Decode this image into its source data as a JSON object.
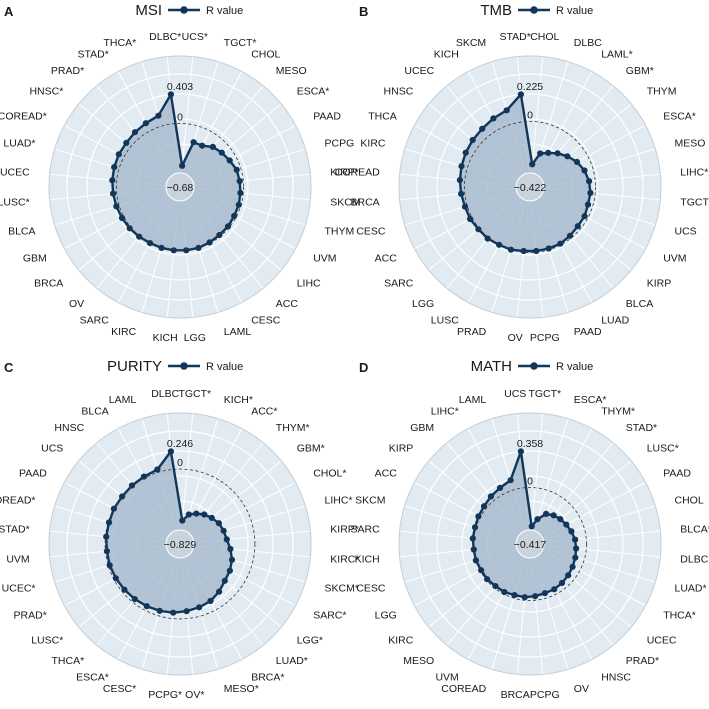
{
  "legend_label": "R value",
  "colors": {
    "series": "#12365a",
    "fill": "#9fb4c8",
    "panel_bg": "#e3ebf2",
    "grid": "#ffffff",
    "ring_lines": "#9aa0a6",
    "zero_ring": "#333333"
  },
  "chart_data": [
    {
      "panel": "A",
      "title": "MSI",
      "type": "radar",
      "rmin": -0.68,
      "rmax": 0.403,
      "labels": {
        "max": "0.403",
        "zero": "0",
        "min": "−0.68"
      },
      "categories": [
        "UCS*",
        "TGCT*",
        "CHOL",
        "MESO",
        "ESCA*",
        "PAAD",
        "PCPG",
        "KIRP*",
        "SKCM",
        "THYM",
        "UVM",
        "LIHC",
        "ACC",
        "CESC",
        "LAML",
        "LGG",
        "KICH",
        "KIRC",
        "SARC",
        "OV",
        "BRCA",
        "GBM",
        "BLCA",
        "LUSC*",
        "UCEC",
        "LUAD*",
        "COREAD*",
        "HNSC*",
        "PRAD*",
        "STAD*",
        "THCA*",
        "DLBC*"
      ],
      "values": [
        -0.58,
        -0.23,
        -0.23,
        -0.16,
        -0.13,
        -0.1,
        -0.06,
        -0.05,
        -0.04,
        -0.03,
        -0.03,
        -0.02,
        -0.02,
        -0.01,
        0.0,
        0.0,
        0.0,
        0.0,
        0.0,
        0.01,
        0.02,
        0.03,
        0.04,
        0.05,
        0.06,
        0.07,
        0.08,
        0.08,
        0.1,
        0.12,
        0.15,
        0.403
      ]
    },
    {
      "panel": "B",
      "title": "TMB",
      "type": "radar",
      "rmin": -0.422,
      "rmax": 0.225,
      "labels": {
        "max": "0.225",
        "zero": "0",
        "min": "−0.422"
      },
      "categories": [
        "CHOL",
        "DLBC",
        "LAML*",
        "GBM*",
        "THYM",
        "ESCA*",
        "MESO",
        "LIHC*",
        "TGCT",
        "UCS",
        "UVM",
        "KIRP",
        "BLCA",
        "LUAD",
        "PAAD",
        "PCPG",
        "OV",
        "PRAD",
        "LUSC",
        "LGG",
        "SARC",
        "ACC",
        "CESC",
        "BRCA",
        "COREAD",
        "KIRC",
        "THCA",
        "HNSC",
        "UCEC",
        "KICH",
        "SKCM",
        "STAD*"
      ],
      "values": [
        -0.35,
        -0.25,
        -0.22,
        -0.18,
        -0.14,
        -0.1,
        -0.07,
        -0.05,
        -0.04,
        -0.04,
        -0.03,
        -0.03,
        -0.02,
        -0.01,
        -0.01,
        -0.01,
        -0.01,
        0.0,
        0.0,
        0.01,
        0.01,
        0.02,
        0.02,
        0.03,
        0.04,
        0.05,
        0.06,
        0.07,
        0.08,
        0.1,
        0.12,
        0.225
      ]
    },
    {
      "panel": "C",
      "title": "PURITY",
      "type": "radar",
      "rmin": -0.829,
      "rmax": 0.246,
      "labels": {
        "max": "0.246",
        "zero": "0",
        "min": "−0.829"
      },
      "categories": [
        "TGCT*",
        "KICH*",
        "ACC*",
        "THYM*",
        "GBM*",
        "CHOL*",
        "LIHC*",
        "KIRP*",
        "KIRC*",
        "SKCM*",
        "SARC*",
        "LGG*",
        "LUAD*",
        "BRCA*",
        "MESO*",
        "OV*",
        "PCPG*",
        "CESC*",
        "ESCA*",
        "THCA*",
        "LUSC*",
        "PRAD*",
        "UCEC*",
        "UVM",
        "STAD*",
        "COREAD*",
        "PAAD",
        "UCS",
        "HNSC",
        "BLCA",
        "LAML",
        "DLBC"
      ],
      "values": [
        -0.7,
        -0.6,
        -0.55,
        -0.5,
        -0.46,
        -0.42,
        -0.4,
        -0.38,
        -0.33,
        -0.28,
        -0.25,
        -0.23,
        -0.18,
        -0.14,
        -0.12,
        -0.1,
        -0.08,
        -0.07,
        -0.06,
        -0.05,
        -0.04,
        -0.03,
        -0.02,
        -0.02,
        -0.01,
        -0.01,
        0.0,
        0.0,
        0.01,
        0.02,
        0.04,
        0.246
      ]
    },
    {
      "panel": "D",
      "title": "MATH",
      "type": "radar",
      "rmin": -0.417,
      "rmax": 0.358,
      "labels": {
        "max": "0.358",
        "zero": "0",
        "min": "−0.417"
      },
      "categories": [
        "TGCT*",
        "ESCA*",
        "THYM*",
        "STAD*",
        "LUSC*",
        "PAAD",
        "CHOL",
        "BLCA*",
        "DLBC",
        "LUAD*",
        "THCA*",
        "UCEC",
        "PRAD*",
        "HNSC",
        "OV",
        "PCPG",
        "BRCA",
        "COREAD",
        "UVM",
        "MESO",
        "KIRC",
        "LGG",
        "CESC",
        "KICH",
        "SARC",
        "SKCM",
        "ACC",
        "KIRP",
        "GBM",
        "LIHC*",
        "LAML",
        "UCS"
      ],
      "values": [
        -0.38,
        -0.3,
        -0.22,
        -0.19,
        -0.17,
        -0.15,
        -0.13,
        -0.11,
        -0.1,
        -0.09,
        -0.08,
        -0.07,
        -0.06,
        -0.05,
        -0.05,
        -0.04,
        -0.03,
        -0.03,
        -0.02,
        -0.02,
        -0.01,
        -0.01,
        0.0,
        0.0,
        0.01,
        0.01,
        0.02,
        0.03,
        0.05,
        0.07,
        0.1,
        0.358
      ]
    }
  ]
}
